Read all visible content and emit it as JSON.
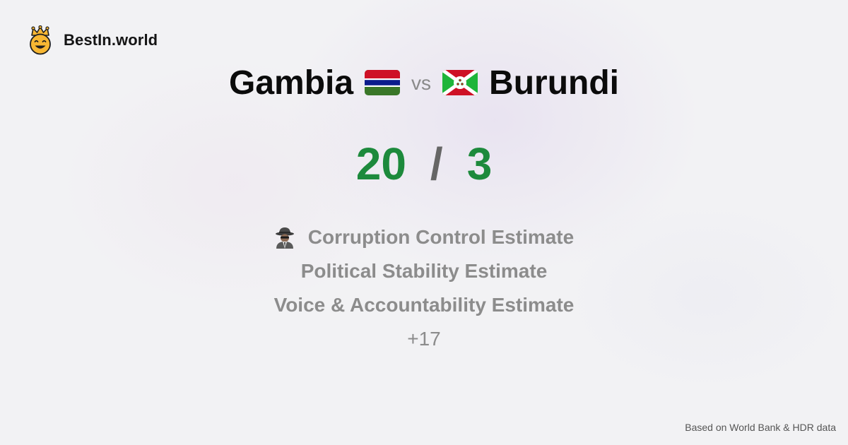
{
  "brand": {
    "logo_icon": "crown-smiley-icon",
    "name": "BestIn.world"
  },
  "comparison": {
    "left_country": "Gambia",
    "left_flag": "gambia-flag-icon",
    "vs_label": "vs",
    "right_country": "Burundi",
    "right_flag": "burundi-flag-icon"
  },
  "score": {
    "left": "20",
    "separator": "/",
    "right": "3",
    "color": "#1d8a3c"
  },
  "metrics": [
    {
      "icon": "detective-icon",
      "label": "Corruption Control Estimate"
    },
    {
      "label": "Political Stability Estimate"
    },
    {
      "label": "Voice & Accountability Estimate"
    }
  ],
  "more_label": "+17",
  "footer": "Based on World Bank & HDR data"
}
